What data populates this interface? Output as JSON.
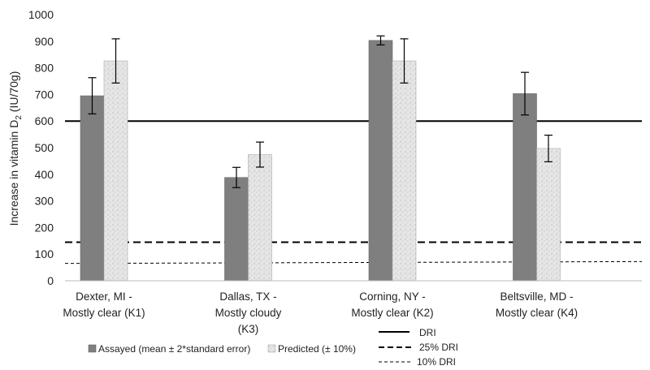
{
  "chart_data": {
    "type": "bar",
    "categories": [
      [
        "Dexter, MI -",
        "Mostly clear (K1)"
      ],
      [
        "Dallas, TX -",
        "Mostly cloudy",
        "(K3)"
      ],
      [
        "Corning, NY -",
        "Mostly clear (K2)"
      ],
      [
        "Beltsville, MD -",
        "Mostly clear (K4)"
      ]
    ],
    "series": [
      {
        "name": "Assayed (mean ± 2*standard error)",
        "values": [
          695,
          388,
          903,
          703
        ],
        "error": [
          68,
          38,
          17,
          80
        ],
        "color": "#7f7f7f"
      },
      {
        "name": "Predicted (± 10%)",
        "values": [
          826,
          474,
          826,
          497
        ],
        "error": [
          83,
          47,
          83,
          50
        ],
        "color": "#e4e4e4"
      }
    ],
    "reference_lines": [
      {
        "name": "DRI",
        "style": "solid",
        "y_start": 600,
        "y_end": 600
      },
      {
        "name": "25% DRI",
        "style": "dashed",
        "y_start": 145,
        "y_end": 145
      },
      {
        "name": "10% DRI",
        "style": "thin-dashed",
        "y_start": 65,
        "y_end": 72
      }
    ],
    "ylabel_parts": [
      "Increase in vitamin D",
      "2",
      " (IU/70g)"
    ],
    "ylim": [
      0,
      1000
    ],
    "yticks": [
      "0",
      "100",
      "200",
      "300",
      "400",
      "500",
      "600",
      "700",
      "800",
      "900",
      "1000"
    ],
    "legend_placement": "bottom",
    "grid": false
  }
}
